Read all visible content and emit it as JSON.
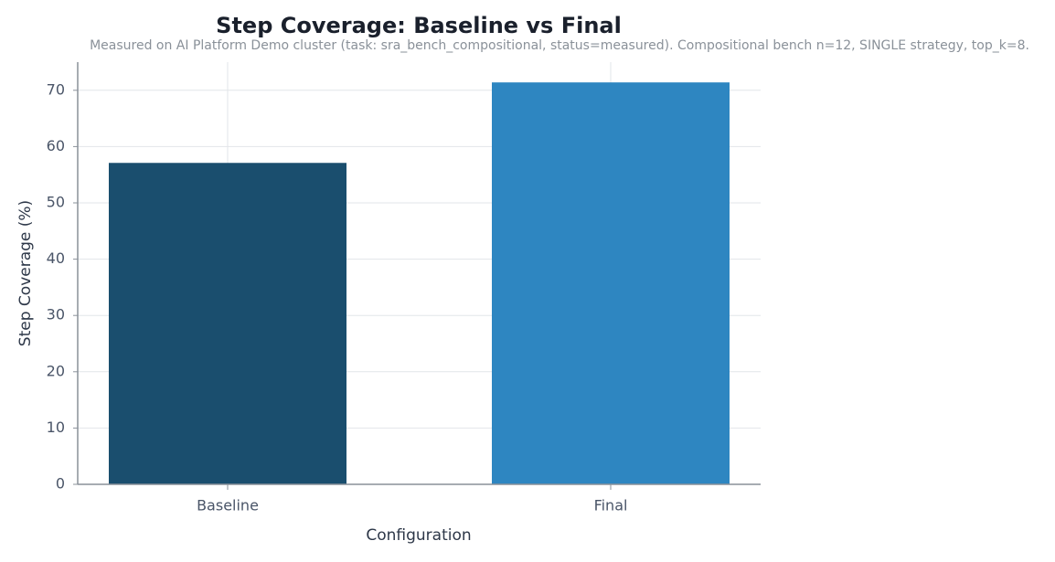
{
  "chart_data": {
    "type": "bar",
    "title": "Step Coverage: Baseline vs Final",
    "subtitle": "Measured on AI Platform Demo cluster (task: sra_bench_compositional, status=measured). Compositional bench n=12, SINGLE strategy, top_k=8.",
    "x_label": "Configuration",
    "y_label": "Step Coverage (%)",
    "categories": [
      "Baseline",
      "Final"
    ],
    "values": [
      57.1,
      71.4
    ],
    "colors": [
      "#1a4e6e",
      "#2e86c1"
    ],
    "ylim": [
      0,
      75
    ],
    "yticks": [
      0,
      10,
      20,
      30,
      40,
      50,
      60,
      70
    ],
    "grid": true
  }
}
